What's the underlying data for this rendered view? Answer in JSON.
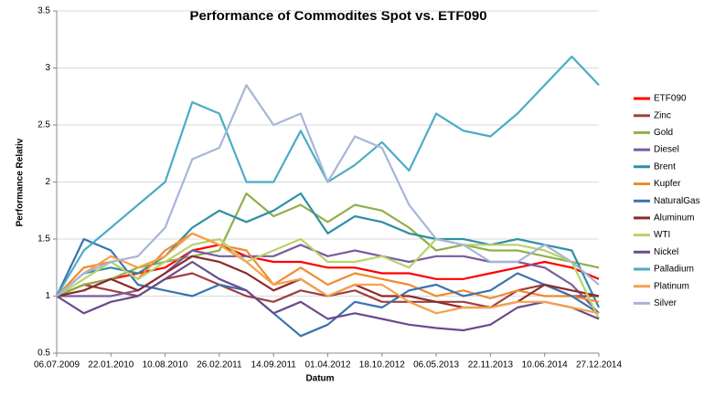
{
  "chart_data": {
    "type": "line",
    "title": "Performance of Commodites Spot vs. ETF090",
    "x_label": "Datum",
    "y_label": "Performance Relativ",
    "x": [
      "06.07.2009",
      "14.10.2009",
      "22.01.2010",
      "02.05.2010",
      "10.08.2010",
      "18.11.2010",
      "26.02.2011",
      "06.06.2011",
      "14.09.2011",
      "23.12.2011",
      "01.04.2012",
      "10.07.2012",
      "18.10.2012",
      "26.01.2013",
      "06.05.2013",
      "14.08.2013",
      "22.11.2013",
      "02.03.2014",
      "10.06.2014",
      "18.09.2014",
      "27.12.2014"
    ],
    "xlim": [
      "06.07.2009",
      "27.12.2014"
    ],
    "xticks": [
      "06.07.2009",
      "22.01.2010",
      "10.08.2010",
      "26.02.2011",
      "14.09.2011",
      "01.04.2012",
      "18.10.2012",
      "06.05.2013",
      "22.11.2013",
      "10.06.2014",
      "27.12.2014"
    ],
    "ylim": [
      0.5,
      3.5
    ],
    "yticks": [
      0.5,
      1,
      1.5,
      2,
      2.5,
      3,
      3.5
    ],
    "grid": true,
    "legend": "right",
    "series": [
      {
        "name": "ETF090",
        "color": "#ff0000",
        "values": [
          1.0,
          1.1,
          1.15,
          1.2,
          1.25,
          1.4,
          1.45,
          1.35,
          1.3,
          1.3,
          1.25,
          1.25,
          1.2,
          1.2,
          1.15,
          1.15,
          1.2,
          1.25,
          1.3,
          1.25,
          1.15
        ]
      },
      {
        "name": "Zinc",
        "color": "#a0403e",
        "values": [
          1.0,
          1.1,
          1.05,
          1.0,
          1.15,
          1.2,
          1.1,
          1.0,
          0.95,
          1.05,
          1.0,
          1.05,
          0.95,
          0.95,
          0.95,
          0.95,
          0.9,
          1.05,
          1.1,
          1.0,
          1.0
        ]
      },
      {
        "name": "Gold",
        "color": "#8fb04a",
        "values": [
          1.0,
          1.1,
          1.15,
          1.25,
          1.3,
          1.35,
          1.4,
          1.9,
          1.7,
          1.8,
          1.65,
          1.8,
          1.75,
          1.6,
          1.4,
          1.45,
          1.4,
          1.4,
          1.35,
          1.3,
          1.25
        ]
      },
      {
        "name": "Diesel",
        "color": "#7a5ba0",
        "values": [
          1.0,
          1.0,
          1.0,
          1.05,
          1.2,
          1.4,
          1.35,
          1.35,
          1.35,
          1.45,
          1.35,
          1.4,
          1.35,
          1.3,
          1.35,
          1.35,
          1.3,
          1.3,
          1.25,
          1.1,
          0.85
        ]
      },
      {
        "name": "Brent",
        "color": "#2e8fa6",
        "values": [
          1.0,
          1.2,
          1.25,
          1.2,
          1.35,
          1.6,
          1.75,
          1.65,
          1.75,
          1.9,
          1.55,
          1.7,
          1.65,
          1.55,
          1.5,
          1.5,
          1.45,
          1.5,
          1.45,
          1.4,
          0.9
        ]
      },
      {
        "name": "Kupfer",
        "color": "#f08a2c",
        "values": [
          1.0,
          1.25,
          1.3,
          1.15,
          1.4,
          1.55,
          1.45,
          1.4,
          1.1,
          1.25,
          1.1,
          1.2,
          1.15,
          1.1,
          1.0,
          1.05,
          0.98,
          1.05,
          1.0,
          1.0,
          0.95
        ]
      },
      {
        "name": "NaturalGas",
        "color": "#3a72b0",
        "values": [
          1.0,
          1.5,
          1.4,
          1.1,
          1.05,
          1.0,
          1.1,
          1.05,
          0.85,
          0.65,
          0.75,
          0.95,
          0.9,
          1.05,
          1.1,
          1.0,
          1.05,
          1.2,
          1.1,
          1.0,
          0.85
        ]
      },
      {
        "name": "Aluminum",
        "color": "#8b2b2b",
        "values": [
          1.0,
          1.05,
          1.15,
          1.05,
          1.2,
          1.35,
          1.3,
          1.2,
          1.05,
          1.15,
          1.0,
          1.1,
          1.0,
          1.0,
          0.95,
          0.9,
          0.9,
          0.95,
          1.1,
          1.05,
          1.0
        ]
      },
      {
        "name": "WTI",
        "color": "#b8d36a",
        "values": [
          1.0,
          1.15,
          1.3,
          1.15,
          1.3,
          1.45,
          1.5,
          1.3,
          1.4,
          1.5,
          1.3,
          1.3,
          1.35,
          1.25,
          1.5,
          1.45,
          1.45,
          1.45,
          1.4,
          1.3,
          0.8
        ]
      },
      {
        "name": "Nickel",
        "color": "#6a4a8c",
        "values": [
          1.0,
          0.85,
          0.95,
          1.0,
          1.15,
          1.3,
          1.15,
          1.05,
          0.85,
          0.95,
          0.8,
          0.85,
          0.8,
          0.75,
          0.72,
          0.7,
          0.75,
          0.9,
          0.95,
          0.9,
          0.8
        ]
      },
      {
        "name": "Palladium",
        "color": "#4bacc6",
        "values": [
          1.0,
          1.4,
          1.6,
          1.8,
          2.0,
          2.7,
          2.6,
          2.0,
          2.0,
          2.45,
          2.0,
          2.15,
          2.35,
          2.1,
          2.6,
          2.45,
          2.4,
          2.6,
          2.85,
          3.1,
          2.85
        ]
      },
      {
        "name": "Platinum",
        "color": "#f7a04b",
        "values": [
          1.0,
          1.2,
          1.35,
          1.25,
          1.35,
          1.55,
          1.45,
          1.3,
          1.1,
          1.15,
          1.0,
          1.1,
          1.1,
          0.95,
          0.85,
          0.9,
          0.9,
          0.95,
          0.95,
          0.9,
          0.85
        ]
      },
      {
        "name": "Silver",
        "color": "#a5b6d8",
        "values": [
          1.0,
          1.2,
          1.3,
          1.35,
          1.6,
          2.2,
          2.3,
          2.85,
          2.5,
          2.6,
          2.0,
          2.4,
          2.3,
          1.8,
          1.5,
          1.45,
          1.3,
          1.3,
          1.45,
          1.3,
          1.1
        ]
      }
    ]
  }
}
